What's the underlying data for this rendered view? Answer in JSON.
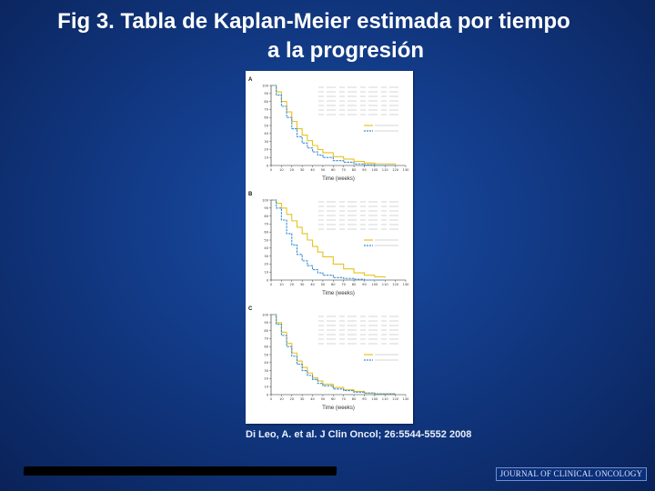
{
  "slide": {
    "title_line1": "Fig 3. Tabla de  Kaplan-Meier estimada  por tiempo",
    "title_line2": "a la progresión",
    "citation": "Di Leo, A. et al. J Clin Oncol; 26:5544-5552 2008",
    "journal": "JOURNAL OF CLINICAL ONCOLOGY"
  },
  "colors": {
    "lapatinib": "#e8c21f",
    "placebo": "#3b8fd6"
  },
  "chart_data": [
    {
      "type": "line",
      "panel": "A",
      "xlabel": "Time (weeks)",
      "ylim": [
        0,
        100
      ],
      "xlim": [
        0,
        130
      ],
      "series": [
        {
          "name": "Paclitaxel/lapatinib",
          "x": [
            0,
            5,
            10,
            15,
            20,
            25,
            30,
            35,
            40,
            45,
            50,
            60,
            70,
            80,
            90,
            100,
            120
          ],
          "y": [
            100,
            92,
            80,
            67,
            55,
            46,
            38,
            31,
            25,
            20,
            16,
            11,
            8,
            5,
            3,
            2,
            1
          ]
        },
        {
          "name": "Paclitaxel/placebo",
          "x": [
            0,
            5,
            10,
            15,
            20,
            25,
            30,
            35,
            40,
            45,
            50,
            60,
            70,
            80,
            90,
            100,
            120
          ],
          "y": [
            100,
            88,
            74,
            60,
            46,
            36,
            28,
            22,
            17,
            13,
            10,
            6,
            4,
            2,
            1,
            0,
            0
          ]
        }
      ]
    },
    {
      "type": "line",
      "panel": "B",
      "xlabel": "Time (weeks)",
      "ylim": [
        0,
        100
      ],
      "xlim": [
        0,
        130
      ],
      "series": [
        {
          "name": "Paclitaxel/lapatinib",
          "x": [
            0,
            5,
            10,
            15,
            20,
            25,
            30,
            35,
            40,
            45,
            50,
            60,
            70,
            80,
            90,
            100,
            110
          ],
          "y": [
            100,
            96,
            90,
            82,
            74,
            66,
            58,
            50,
            42,
            35,
            29,
            20,
            14,
            9,
            6,
            4,
            3
          ]
        },
        {
          "name": "Paclitaxel/placebo",
          "x": [
            0,
            5,
            10,
            15,
            20,
            25,
            30,
            35,
            40,
            45,
            50,
            60,
            70,
            80,
            90,
            100,
            110
          ],
          "y": [
            100,
            90,
            75,
            58,
            44,
            32,
            24,
            18,
            13,
            9,
            6,
            3,
            2,
            1,
            0,
            0,
            0
          ]
        }
      ]
    },
    {
      "type": "line",
      "panel": "C",
      "xlabel": "Time (weeks)",
      "ylim": [
        0,
        100
      ],
      "xlim": [
        0,
        130
      ],
      "series": [
        {
          "name": "Paclitaxel/lapatinib",
          "x": [
            0,
            5,
            10,
            15,
            20,
            25,
            30,
            35,
            40,
            45,
            50,
            60,
            70,
            80,
            90,
            100,
            120
          ],
          "y": [
            100,
            90,
            78,
            64,
            52,
            42,
            34,
            27,
            21,
            17,
            13,
            9,
            6,
            4,
            2,
            1,
            1
          ]
        },
        {
          "name": "Paclitaxel/placebo",
          "x": [
            0,
            5,
            10,
            15,
            20,
            25,
            30,
            35,
            40,
            45,
            50,
            60,
            70,
            80,
            90,
            100,
            120
          ],
          "y": [
            100,
            88,
            74,
            60,
            48,
            38,
            30,
            24,
            19,
            14,
            11,
            7,
            5,
            3,
            2,
            1,
            0
          ]
        }
      ]
    }
  ]
}
